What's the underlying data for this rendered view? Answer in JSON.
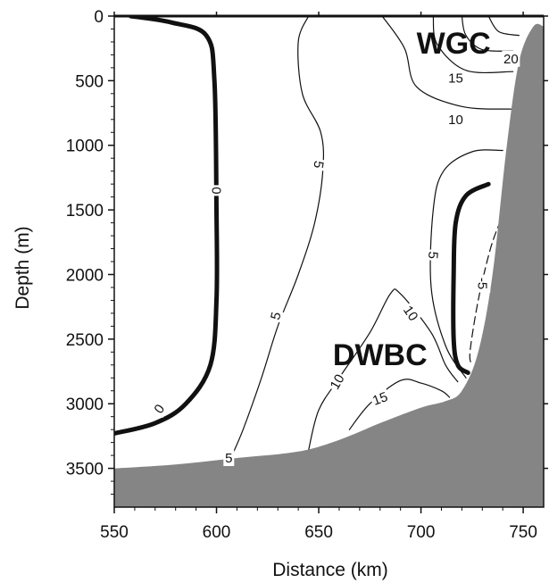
{
  "chart_data": {
    "type": "contour",
    "xlabel": "Distance (km)",
    "ylabel": "Depth (m)",
    "xlim": [
      550,
      760
    ],
    "ylim": [
      0,
      3800
    ],
    "y_inverted": true,
    "xticks": [
      550,
      600,
      650,
      700,
      750
    ],
    "yticks": [
      0,
      500,
      1000,
      1500,
      2000,
      2500,
      3000,
      3500
    ],
    "bathymetry": [
      [
        550,
        3500
      ],
      [
        580,
        3470
      ],
      [
        610,
        3420
      ],
      [
        640,
        3370
      ],
      [
        660,
        3280
      ],
      [
        680,
        3150
      ],
      [
        700,
        3030
      ],
      [
        712,
        2980
      ],
      [
        720,
        2900
      ],
      [
        728,
        2600
      ],
      [
        735,
        2000
      ],
      [
        742,
        1000
      ],
      [
        748,
        350
      ],
      [
        755,
        80
      ],
      [
        760,
        80
      ]
    ],
    "contour_interval": 5,
    "contours": [
      {
        "level": 0,
        "style": "bold",
        "points": [
          [
            558,
            0
          ],
          [
            578,
            50
          ],
          [
            595,
            150
          ],
          [
            599,
            500
          ],
          [
            600,
            1500
          ],
          [
            600,
            2200
          ],
          [
            597,
            2700
          ],
          [
            585,
            3000
          ],
          [
            570,
            3150
          ],
          [
            550,
            3230
          ]
        ]
      },
      {
        "level": 5,
        "style": "thin",
        "points": [
          [
            645,
            0
          ],
          [
            640,
            200
          ],
          [
            642,
            600
          ],
          [
            651,
            900
          ],
          [
            652,
            1200
          ],
          [
            648,
            1600
          ],
          [
            640,
            2000
          ],
          [
            630,
            2400
          ],
          [
            622,
            2800
          ],
          [
            613,
            3200
          ],
          [
            607,
            3420
          ]
        ]
      },
      {
        "level": 10,
        "style": "thin",
        "points": [
          [
            645,
            3360
          ],
          [
            650,
            3050
          ],
          [
            660,
            2800
          ],
          [
            675,
            2450
          ],
          [
            685,
            2150
          ],
          [
            690,
            2150
          ],
          [
            705,
            2450
          ],
          [
            712,
            2700
          ],
          [
            718,
            2830
          ]
        ]
      },
      {
        "level": 15,
        "style": "thin",
        "points": [
          [
            665,
            3200
          ],
          [
            675,
            3000
          ],
          [
            690,
            2820
          ],
          [
            700,
            2840
          ],
          [
            710,
            2900
          ],
          [
            714,
            2950
          ]
        ]
      },
      {
        "level": 5,
        "style": "thin",
        "points": [
          [
            722,
            2800
          ],
          [
            712,
            2550
          ],
          [
            705,
            2100
          ],
          [
            706,
            1500
          ],
          [
            711,
            1200
          ],
          [
            725,
            1050
          ],
          [
            740,
            1040
          ]
        ]
      },
      {
        "level": 0,
        "style": "bold",
        "points": [
          [
            733,
            1300
          ],
          [
            722,
            1390
          ],
          [
            717,
            1600
          ],
          [
            716,
            2000
          ],
          [
            716,
            2500
          ],
          [
            718,
            2700
          ],
          [
            723,
            2760
          ]
        ]
      },
      {
        "level": -5,
        "style": "dashed",
        "points": [
          [
            739,
            1580
          ],
          [
            734,
            1800
          ],
          [
            728,
            2200
          ],
          [
            724,
            2600
          ],
          [
            725,
            2700
          ]
        ]
      },
      {
        "level": 10,
        "style": "thin",
        "points": [
          [
            681,
            0
          ],
          [
            692,
            250
          ],
          [
            698,
            550
          ],
          [
            720,
            700
          ],
          [
            745,
            720
          ]
        ]
      },
      {
        "level": 15,
        "style": "thin",
        "points": [
          [
            706,
            0
          ],
          [
            708,
            220
          ],
          [
            722,
            420
          ],
          [
            745,
            430
          ]
        ]
      },
      {
        "level": 20,
        "style": "thin",
        "points": [
          [
            720,
            0
          ],
          [
            722,
            150
          ],
          [
            730,
            260
          ],
          [
            745,
            270
          ]
        ]
      },
      {
        "level": 25,
        "style": "thin",
        "points": [
          [
            733,
            0
          ],
          [
            738,
            120
          ],
          [
            748,
            150
          ]
        ]
      }
    ],
    "contour_labels": [
      {
        "text": "0",
        "x": 600,
        "y": 1350,
        "angle": 90
      },
      {
        "text": "0",
        "x": 572,
        "y": 3040,
        "angle": -55
      },
      {
        "text": "5",
        "x": 650,
        "y": 1150,
        "angle": 100
      },
      {
        "text": "5",
        "x": 629,
        "y": 2320,
        "angle": -75
      },
      {
        "text": "5",
        "x": 606,
        "y": 3420,
        "angle": 0
      },
      {
        "text": "10",
        "x": 717,
        "y": 800,
        "angle": 0
      },
      {
        "text": "15",
        "x": 717,
        "y": 480,
        "angle": 0
      },
      {
        "text": "20",
        "x": 744,
        "y": 330,
        "angle": 0
      },
      {
        "text": "10",
        "x": 659,
        "y": 2830,
        "angle": -60
      },
      {
        "text": "10",
        "x": 695,
        "y": 2300,
        "angle": 55
      },
      {
        "text": "15",
        "x": 680,
        "y": 2960,
        "angle": -20
      },
      {
        "text": "5",
        "x": 706,
        "y": 1850,
        "angle": 95
      },
      {
        "text": "-5",
        "x": 730,
        "y": 2070,
        "angle": 90
      }
    ],
    "annotations": [
      {
        "text": "WGC",
        "x": 716,
        "y": 290
      },
      {
        "text": "DWBC",
        "x": 680,
        "y": 2700
      }
    ]
  }
}
